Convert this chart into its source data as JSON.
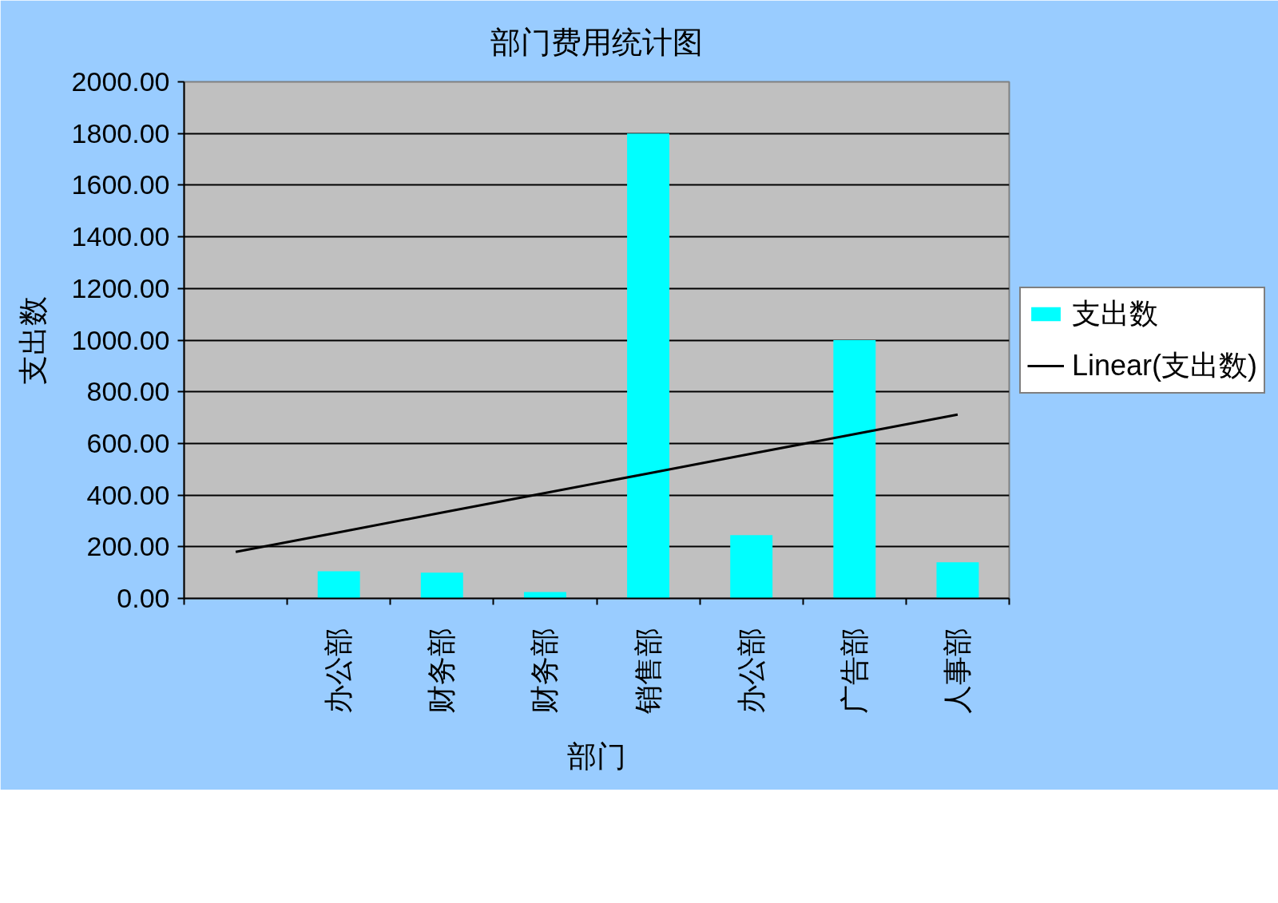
{
  "chart_data": {
    "type": "bar",
    "title": "部门费用统计图",
    "xlabel": "部门",
    "ylabel": "支出数",
    "categories": [
      null,
      "办公部",
      "财务部",
      "财务部",
      "销售部",
      "办公部",
      "广告部",
      "人事部"
    ],
    "series": [
      {
        "name": "支出数",
        "color": "#00ffff",
        "values": [
          null,
          105,
          100,
          25,
          1800,
          245,
          1000,
          140
        ]
      },
      {
        "name": "Linear(支出数)",
        "type": "line",
        "color": "#000000",
        "values": [
          180,
          256,
          332,
          408,
          484,
          560,
          636,
          712
        ]
      }
    ],
    "ylim": [
      0,
      2000
    ],
    "yticks": [
      {
        "value": 0,
        "label": "0.00"
      },
      {
        "value": 200,
        "label": "200.00"
      },
      {
        "value": 400,
        "label": "400.00"
      },
      {
        "value": 600,
        "label": "600.00"
      },
      {
        "value": 800,
        "label": "800.00"
      },
      {
        "value": 1000,
        "label": "1000.00"
      },
      {
        "value": 1200,
        "label": "1200.00"
      },
      {
        "value": 1400,
        "label": "1400.00"
      },
      {
        "value": 1600,
        "label": "1600.00"
      },
      {
        "value": 1800,
        "label": "1800.00"
      },
      {
        "value": 2000,
        "label": "2000.00"
      }
    ],
    "grid": "y",
    "legend": "right"
  }
}
